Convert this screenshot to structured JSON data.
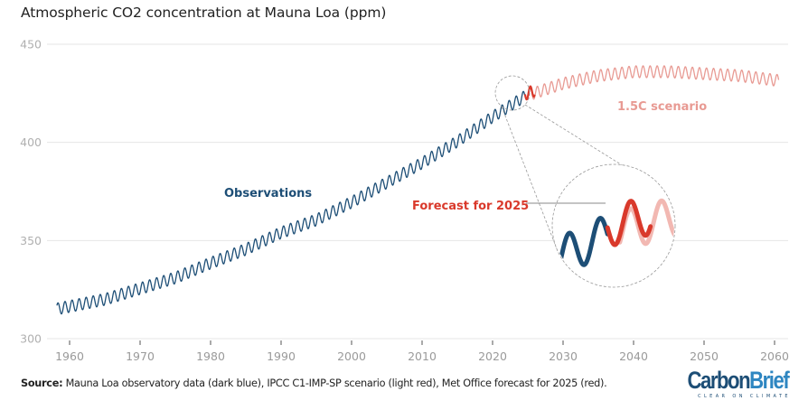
{
  "chart_data": {
    "type": "line",
    "title": "Atmospheric CO2 concentration at Mauna Loa (ppm)",
    "xlabel": "",
    "ylabel": "",
    "xlim": [
      1957,
      2062
    ],
    "ylim": [
      300,
      450
    ],
    "grid": true,
    "x_ticks": [
      1960,
      1970,
      1980,
      1990,
      2000,
      2010,
      2020,
      2030,
      2040,
      2050,
      2060
    ],
    "y_ticks": [
      300,
      350,
      400,
      450
    ],
    "seasonal_amplitude_ppm": 3,
    "series": [
      {
        "name": "Observations",
        "color": "#1d4e76",
        "x_range": [
          1958.2,
          2024.6
        ],
        "trend_x": [
          1958,
          1965,
          1970,
          1975,
          1980,
          1985,
          1990,
          1995,
          2000,
          2005,
          2010,
          2015,
          2020,
          2024.6
        ],
        "trend_y": [
          315,
          320,
          325.5,
          331,
          338.5,
          345.5,
          354,
          360.5,
          369.5,
          379.5,
          389.5,
          400.5,
          413,
          423.5
        ]
      },
      {
        "name": "Forecast for 2025",
        "color": "#d9392b",
        "x_range": [
          2024.6,
          2026.0
        ],
        "trend_x": [
          2024.6,
          2026.0
        ],
        "trend_y": [
          424.5,
          426.5
        ]
      },
      {
        "name": "1.5C scenario",
        "color": "#e89a93",
        "x_range": [
          2025.0,
          2060.6
        ],
        "trend_x": [
          2025,
          2030,
          2035,
          2040,
          2045,
          2050,
          2055,
          2060.6
        ],
        "trend_y": [
          424,
          430,
          434,
          436,
          436,
          435,
          434,
          431.5
        ]
      }
    ],
    "annotations": [
      {
        "text": "Observations",
        "series": "Observations"
      },
      {
        "text": "1.5C scenario",
        "series": "1.5C scenario"
      },
      {
        "text": "Forecast for 2025",
        "series": "Forecast for 2025"
      }
    ],
    "inset": {
      "type": "magnifier",
      "x_range": [
        2022,
        2027
      ],
      "description": "zoomed view of 2022-2027 showing observations, forecast and scenario"
    }
  },
  "source": {
    "label": "Source:",
    "text": " Mauna Loa observatory data (dark blue), IPCC C1-IMP-SP scenario (light red), Met Office forecast for 2025 (red)."
  },
  "logo": {
    "part1": "Carbon",
    "part2": "Brief",
    "tagline": "CLEAR ON CLIMATE"
  }
}
